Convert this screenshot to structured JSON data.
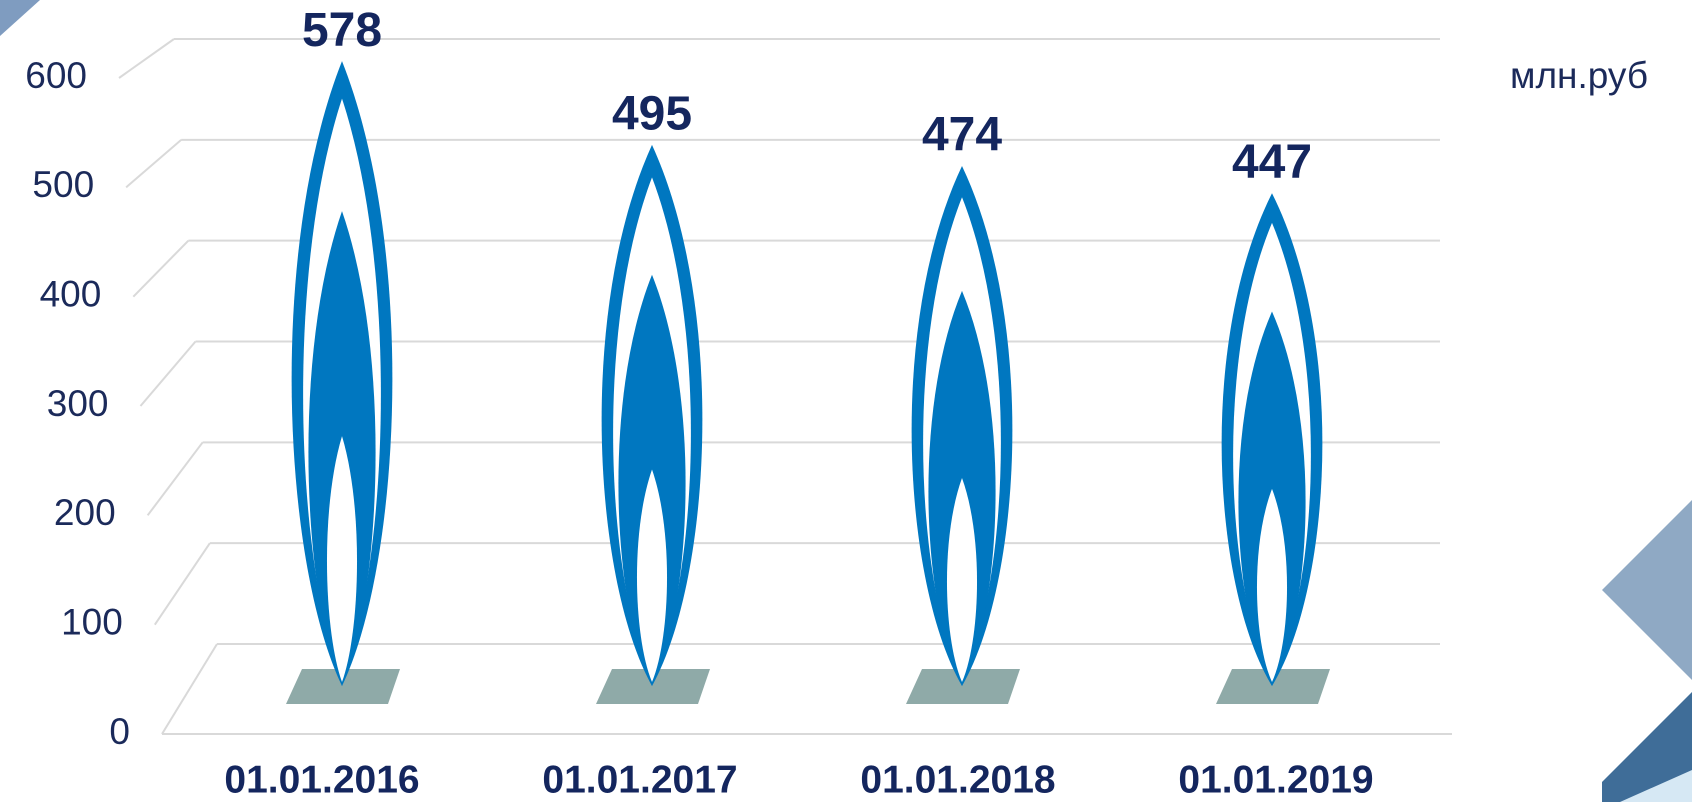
{
  "chart_data": {
    "type": "bar",
    "y_unit_label": "млн.руб",
    "categories": [
      "01.01.2016",
      "01.01.2017",
      "01.01.2018",
      "01.01.2019"
    ],
    "values": [
      578,
      495,
      474,
      447
    ],
    "color": "#0077c0",
    "ylim": [
      0,
      600
    ],
    "yticks": [
      0,
      100,
      200,
      300,
      400,
      500,
      600
    ],
    "grid": true
  }
}
